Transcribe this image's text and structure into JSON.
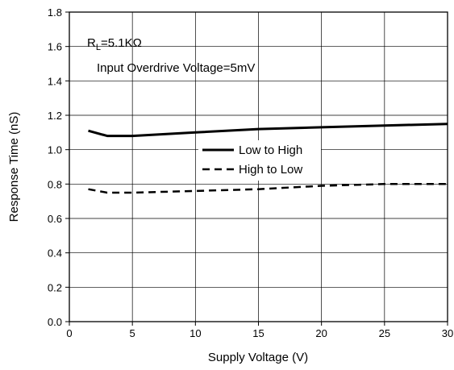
{
  "chart_data": {
    "type": "line",
    "xlabel": "Supply Voltage (V)",
    "ylabel": "Response Time (nS)",
    "xlim": [
      0,
      30
    ],
    "ylim": [
      0.0,
      1.8
    ],
    "xticks": [
      0,
      5,
      10,
      15,
      20,
      25,
      30
    ],
    "yticks": [
      0.0,
      0.2,
      0.4,
      0.6,
      0.8,
      1.0,
      1.2,
      1.4,
      1.6,
      1.8
    ],
    "x_tick_labels": [
      "0",
      "5",
      "10",
      "15",
      "20",
      "25",
      "30"
    ],
    "y_tick_labels": [
      "0.0",
      "0.2",
      "0.4",
      "0.6",
      "0.8",
      "1.0",
      "1.2",
      "1.4",
      "1.6",
      "1.8"
    ],
    "grid": true,
    "legend_position": "center-right",
    "annotations": {
      "rl_main": "R",
      "rl_sub": "L",
      "rl_value": "=5.1KΩ",
      "overdrive": "Input Overdrive Voltage=5mV"
    },
    "series": [
      {
        "name": "Low to High",
        "style": "solid",
        "color": "#000000",
        "x": [
          1.5,
          3,
          5,
          10,
          15,
          20,
          25,
          30
        ],
        "y": [
          1.11,
          1.08,
          1.08,
          1.1,
          1.12,
          1.13,
          1.14,
          1.15
        ]
      },
      {
        "name": "High to Low",
        "style": "dashed",
        "color": "#000000",
        "x": [
          1.5,
          3,
          5,
          10,
          15,
          20,
          25,
          30
        ],
        "y": [
          0.77,
          0.75,
          0.75,
          0.76,
          0.77,
          0.79,
          0.8,
          0.8
        ]
      }
    ]
  }
}
